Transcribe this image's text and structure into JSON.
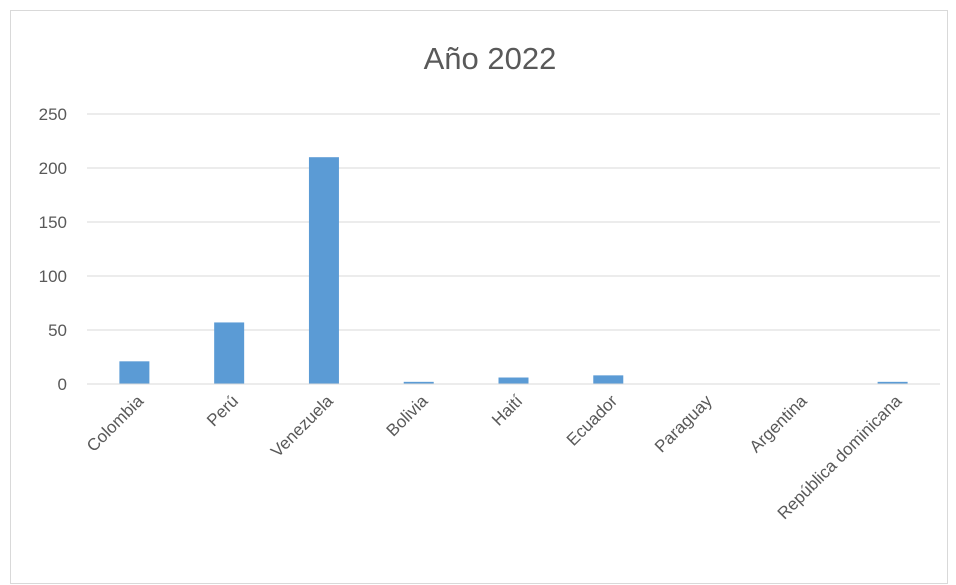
{
  "chart_data": {
    "type": "bar",
    "title": "Año 2022",
    "categories": [
      "Colombia",
      "Perú",
      "Venezuela",
      "Bolivia",
      "Haití",
      "Ecuador",
      "Paraguay",
      "Argentina",
      "República dominicana"
    ],
    "values": [
      21,
      57,
      210,
      2,
      6,
      8,
      0,
      0,
      2
    ],
    "ylim": [
      0,
      250
    ],
    "yticks": [
      0,
      50,
      100,
      150,
      200,
      250
    ],
    "xlabel": "",
    "ylabel": "",
    "grid": true,
    "legend": "none",
    "bar_color": "#5b9bd5",
    "grid_color": "#d9d9d9",
    "text_color": "#595959"
  }
}
